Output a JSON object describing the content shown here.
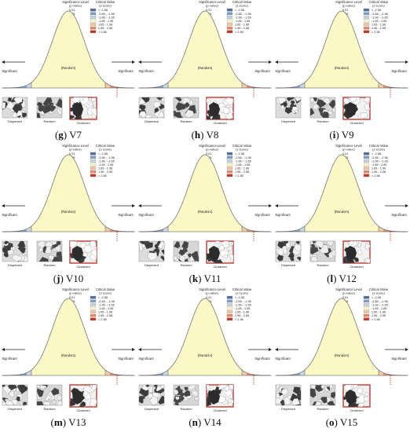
{
  "panels": [
    {
      "letter": "g",
      "variable": "V7"
    },
    {
      "letter": "h",
      "variable": "V8"
    },
    {
      "letter": "i",
      "variable": "V9"
    },
    {
      "letter": "j",
      "variable": "V10"
    },
    {
      "letter": "k",
      "variable": "V11"
    },
    {
      "letter": "l",
      "variable": "V12"
    },
    {
      "letter": "m",
      "variable": "V13"
    },
    {
      "letter": "n",
      "variable": "V14"
    },
    {
      "letter": "o",
      "variable": "V15"
    }
  ],
  "figure": {
    "significance_title": "Significance Level",
    "significance_subtitle": "(p-value)",
    "critical_title": "Critical Value",
    "critical_subtitle": "(z-score)",
    "legend_rows": [
      {
        "p": "0.01",
        "z": "< -2.58",
        "color": "#4a6fa5"
      },
      {
        "p": "0.05",
        "z": "-2.58 - -1.96",
        "color": "#7f9cc3"
      },
      {
        "p": "0.10",
        "z": "-1.96 - -1.65",
        "color": "#c2d3e6"
      },
      {
        "p": "---",
        "z": "-1.65 - 1.65",
        "color": "#f5f3c4"
      },
      {
        "p": "0.10",
        "z": "1.65 - 1.96",
        "color": "#f2c4a4"
      },
      {
        "p": "0.05",
        "z": "1.96 - 2.58",
        "color": "#e8866a"
      },
      {
        "p": "0.01",
        "z": "> 2.58",
        "color": "#cc3322"
      }
    ],
    "center_label": "(Random)",
    "left_label": "Significant",
    "right_label": "Significant",
    "maps": {
      "dispersed": "Dispersed",
      "random": "Random",
      "clustered": "Clustered"
    },
    "colors": {
      "curve_fill": "#fbf8c6",
      "curve_stroke": "#777777",
      "clustered_frame": "#c0392b"
    }
  }
}
